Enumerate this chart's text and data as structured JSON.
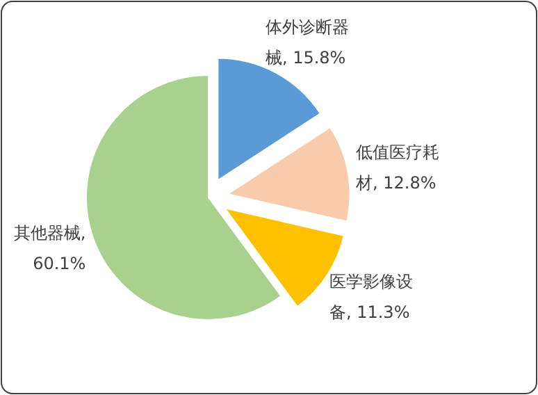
{
  "chart_data": {
    "type": "pie",
    "categories": [
      "体外诊断器械",
      "低值医疗耗材",
      "医学影像设备",
      "其他器械"
    ],
    "values": [
      15.8,
      12.8,
      11.3,
      60.1
    ],
    "colors": [
      "#5b9bd5",
      "#f8cbad",
      "#ffc000",
      "#a9d18e"
    ],
    "value_labels": [
      ", 15.8%",
      ", 12.8%",
      ", 11.3%",
      ", 60.1%"
    ]
  }
}
